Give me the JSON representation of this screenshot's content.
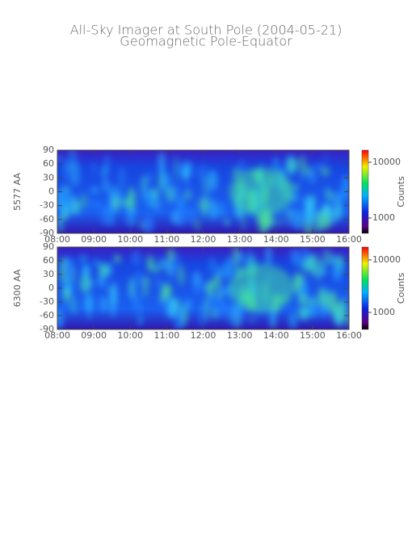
{
  "title": "All-Sky Imager at South Pole (2004-05-21)",
  "subtitle": "Geomagnetic Pole-Equator",
  "chart_data": [
    {
      "type": "heatmap",
      "ylabel": "5577 AA",
      "colorbar_label": "Counts",
      "color_log": true,
      "clim": [
        530,
        16500
      ],
      "cticks": [
        1000,
        10000
      ],
      "xlim": [
        8,
        16
      ],
      "xticks": [
        {
          "value": 8,
          "label": "08:00"
        },
        {
          "value": 9,
          "label": "09:00"
        },
        {
          "value": 10,
          "label": "10:00"
        },
        {
          "value": 11,
          "label": "11:00"
        },
        {
          "value": 12,
          "label": "12:00"
        },
        {
          "value": 13,
          "label": "13:00"
        },
        {
          "value": 14,
          "label": "14:00"
        },
        {
          "value": 15,
          "label": "15:00"
        },
        {
          "value": 16,
          "label": "16:00"
        }
      ],
      "ylim": [
        -90,
        90
      ],
      "yticks": [
        -90,
        -60,
        -30,
        0,
        30,
        60,
        90
      ]
    },
    {
      "type": "heatmap",
      "ylabel": "6300 AA",
      "colorbar_label": "Counts",
      "color_log": true,
      "clim": [
        475,
        17600
      ],
      "cticks": [
        1000,
        10000
      ],
      "xlim": [
        8,
        16
      ],
      "xticks": [
        {
          "value": 8,
          "label": "08:00"
        },
        {
          "value": 9,
          "label": "09:00"
        },
        {
          "value": 10,
          "label": "10:00"
        },
        {
          "value": 11,
          "label": "11:00"
        },
        {
          "value": 12,
          "label": "12:00"
        },
        {
          "value": 13,
          "label": "13:00"
        },
        {
          "value": 14,
          "label": "14:00"
        },
        {
          "value": 15,
          "label": "15:00"
        },
        {
          "value": 16,
          "label": "16:00"
        }
      ],
      "ylim": [
        -90,
        90
      ],
      "yticks": [
        -90,
        -60,
        -30,
        0,
        30,
        60,
        90
      ]
    }
  ]
}
